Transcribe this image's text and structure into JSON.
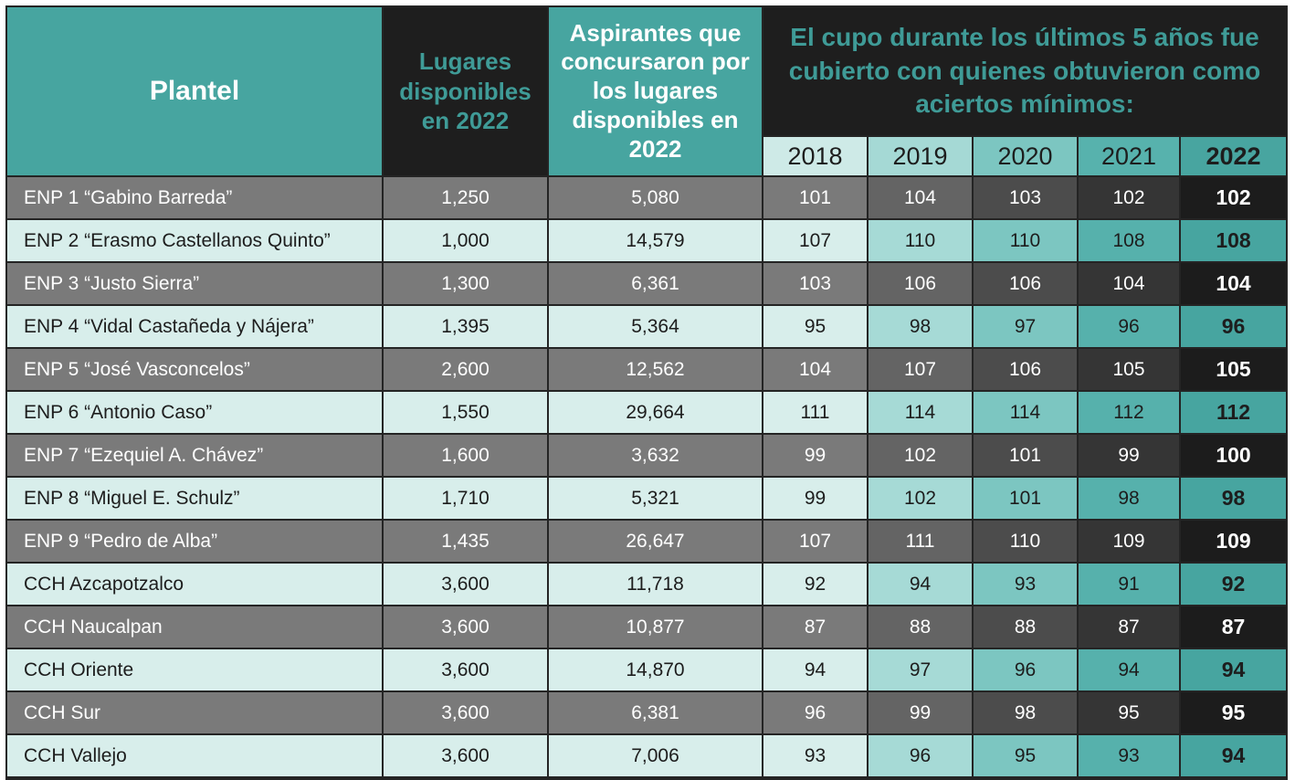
{
  "chart_data": {
    "type": "table",
    "headers": {
      "plantel": "Plantel",
      "lugares": "Lugares disponibles en 2022",
      "aspirantes": "Aspirantes que concursaron por los lugares disponibles en 2022",
      "cupo_group": "El cupo durante los últimos 5 años fue cubierto con quienes obtuvieron como aciertos mínimos:",
      "years": [
        "2018",
        "2019",
        "2020",
        "2021",
        "2022"
      ]
    },
    "rows": [
      {
        "plantel": "ENP 1 “Gabino Barreda”",
        "lugares": "1,250",
        "aspirantes": "5,080",
        "scores": [
          101,
          104,
          103,
          102,
          102
        ]
      },
      {
        "plantel": "ENP 2 “Erasmo Castellanos Quinto”",
        "lugares": "1,000",
        "aspirantes": "14,579",
        "scores": [
          107,
          110,
          110,
          108,
          108
        ]
      },
      {
        "plantel": "ENP 3 “Justo Sierra”",
        "lugares": "1,300",
        "aspirantes": "6,361",
        "scores": [
          103,
          106,
          106,
          104,
          104
        ]
      },
      {
        "plantel": "ENP 4 “Vidal Castañeda y Nájera”",
        "lugares": "1,395",
        "aspirantes": "5,364",
        "scores": [
          95,
          98,
          97,
          96,
          96
        ]
      },
      {
        "plantel": "ENP 5 “José Vasconcelos”",
        "lugares": "2,600",
        "aspirantes": "12,562",
        "scores": [
          104,
          107,
          106,
          105,
          105
        ]
      },
      {
        "plantel": "ENP 6 “Antonio Caso”",
        "lugares": "1,550",
        "aspirantes": "29,664",
        "scores": [
          111,
          114,
          114,
          112,
          112
        ]
      },
      {
        "plantel": "ENP 7 “Ezequiel A. Chávez”",
        "lugares": "1,600",
        "aspirantes": "3,632",
        "scores": [
          99,
          102,
          101,
          99,
          100
        ]
      },
      {
        "plantel": "ENP 8 “Miguel E. Schulz”",
        "lugares": "1,710",
        "aspirantes": "5,321",
        "scores": [
          99,
          102,
          101,
          98,
          98
        ]
      },
      {
        "plantel": "ENP 9 “Pedro de Alba”",
        "lugares": "1,435",
        "aspirantes": "26,647",
        "scores": [
          107,
          111,
          110,
          109,
          109
        ]
      },
      {
        "plantel": "CCH Azcapotzalco",
        "lugares": "3,600",
        "aspirantes": "11,718",
        "scores": [
          92,
          94,
          93,
          91,
          92
        ]
      },
      {
        "plantel": "CCH Naucalpan",
        "lugares": "3,600",
        "aspirantes": "10,877",
        "scores": [
          87,
          88,
          88,
          87,
          87
        ]
      },
      {
        "plantel": "CCH Oriente",
        "lugares": "3,600",
        "aspirantes": "14,870",
        "scores": [
          94,
          97,
          96,
          94,
          94
        ]
      },
      {
        "plantel": "CCH Sur",
        "lugares": "3,600",
        "aspirantes": "6,381",
        "scores": [
          96,
          99,
          98,
          95,
          95
        ]
      },
      {
        "plantel": "CCH Vallejo",
        "lugares": "3,600",
        "aspirantes": "7,006",
        "scores": [
          93,
          96,
          95,
          93,
          94
        ]
      }
    ]
  },
  "colors": {
    "teal": "#47A5A0",
    "teal_text_on_dark": "#3F9B97",
    "dark": "#1E1E1E",
    "gray_row": "#7A7A7A",
    "light_row": "#D8EEEB",
    "text_dark": "#1D1D1D",
    "text_white": "#FFFFFF",
    "year_header_tints": [
      "#CEEAE7",
      "#A5D9D5",
      "#7CC6C1",
      "#57B2AD",
      "#48A5A0"
    ],
    "gray_row_year_tints": [
      "#7A7A7A",
      "#646464",
      "#4C4C4C",
      "#353535",
      "#1C1C1C"
    ],
    "light_row_year_tints": [
      "#D8EEEB",
      "#A6DAD6",
      "#7CC6C1",
      "#56B1AC",
      "#47A5A0"
    ]
  }
}
